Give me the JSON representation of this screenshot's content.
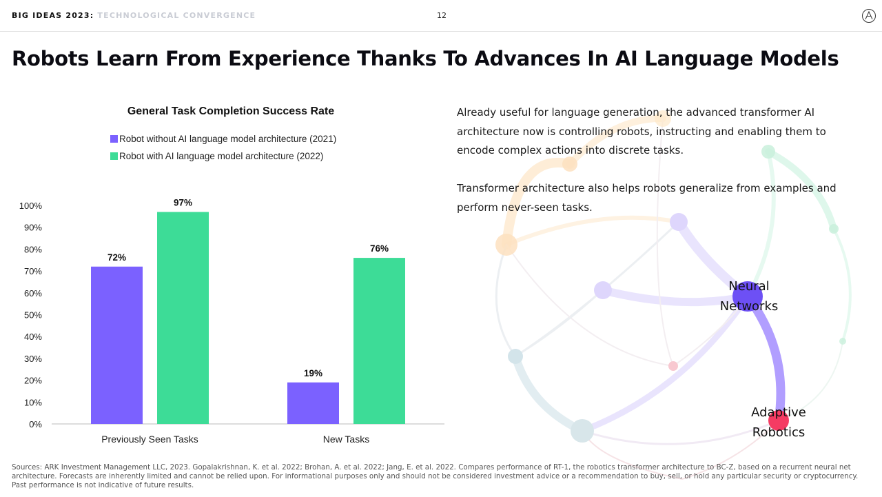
{
  "header": {
    "brand": "BIG IDEAS 2023",
    "brand_sep": ":",
    "subtitle": "TECHNOLOGICAL CONVERGENCE",
    "page_number": "12"
  },
  "slide_title": "Robots Learn From Experience Thanks To Advances In AI Language Models",
  "paragraphs": {
    "p1": "Already useful for language generation, the advanced transformer AI architecture now is controlling robots, instructing and enabling them to encode complex actions into discrete tasks.",
    "p2": "Transformer architecture also helps robots generalize from examples and perform never-seen tasks."
  },
  "network_labels": {
    "neural_1": "Neural",
    "neural_2": "Networks",
    "adaptive_1": "Adaptive",
    "adaptive_2": "Robotics"
  },
  "footer": {
    "sources": "Sources: ARK Investment Management LLC, 2023. Gopalakrishnan, K. et al. 2022; Brohan, A. et al. 2022; Jang, E. et al. 2022. Compares performance of RT-1, the robotics transformer architecture to BC-Z, based on a recurrent neural net architecture. Forecasts are inherently limited and cannot be relied upon. For informational purposes only and should not be considered investment advice or a recommendation to buy, sell, or hold any particular security or cryptocurrency. Past performance is not indicative of future results."
  },
  "chart_data": {
    "type": "bar",
    "title": "General Task Completion Success Rate",
    "categories": [
      "Previously Seen Tasks",
      "New Tasks"
    ],
    "series": [
      {
        "name": "Robot without AI language model architecture (2021)",
        "values": [
          72,
          19
        ],
        "labels": [
          "72%",
          "19%"
        ],
        "color": "#7b61ff"
      },
      {
        "name": "Robot with AI language model architecture (2022)",
        "values": [
          97,
          76
        ],
        "labels": [
          "97%",
          "76%"
        ],
        "color": "#3ddc97"
      }
    ],
    "ylim": [
      0,
      100
    ],
    "yticks": [
      "0%",
      "10%",
      "20%",
      "30%",
      "40%",
      "50%",
      "60%",
      "70%",
      "80%",
      "90%",
      "100%"
    ],
    "legend_position": "top",
    "grid": false
  }
}
